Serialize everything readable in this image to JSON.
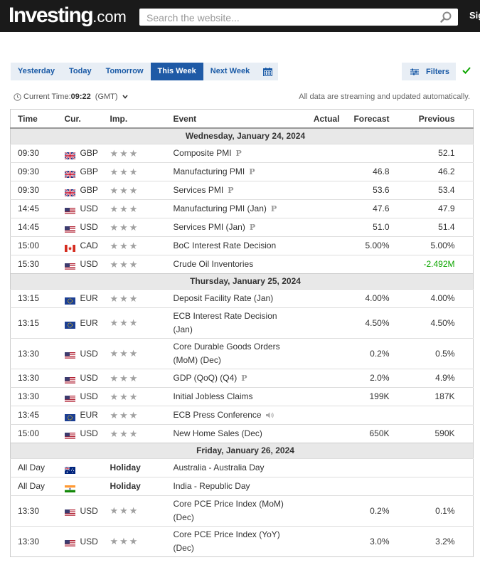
{
  "header": {
    "logo_main": "Investing",
    "logo_suffix": ".com",
    "search_placeholder": "Search the website...",
    "signin_label": "Sig"
  },
  "tabs": [
    {
      "label": "Yesterday"
    },
    {
      "label": "Today"
    },
    {
      "label": "Tomorrow"
    },
    {
      "label": "This Week",
      "active": true
    },
    {
      "label": "Next Week"
    }
  ],
  "filters_label": "Filters",
  "time_bar": {
    "label": "Current Time:",
    "value": "09:22",
    "timezone": "(GMT)"
  },
  "streaming_note": "All data are streaming and updated automatically.",
  "columns": {
    "time": "Time",
    "cur": "Cur.",
    "imp": "Imp.",
    "event": "Event",
    "actual": "Actual",
    "forecast": "Forecast",
    "previous": "Previous"
  },
  "colors": {
    "accent": "#1f5aa6",
    "positive": "#0ea600",
    "star": "#a0a0a0"
  },
  "days": [
    {
      "label": "Wednesday, January 24, 2024",
      "rows": [
        {
          "time": "09:30",
          "cur": "GBP",
          "flag": "gb",
          "imp": "★★★",
          "event": "Composite PMI",
          "pre": true,
          "actual": "",
          "forecast": "",
          "previous": "52.1"
        },
        {
          "time": "09:30",
          "cur": "GBP",
          "flag": "gb",
          "imp": "★★★",
          "event": "Manufacturing PMI",
          "pre": true,
          "actual": "",
          "forecast": "46.8",
          "previous": "46.2"
        },
        {
          "time": "09:30",
          "cur": "GBP",
          "flag": "gb",
          "imp": "★★★",
          "event": "Services PMI",
          "pre": true,
          "actual": "",
          "forecast": "53.6",
          "previous": "53.4"
        },
        {
          "time": "14:45",
          "cur": "USD",
          "flag": "us",
          "imp": "★★★",
          "event": "Manufacturing PMI (Jan)",
          "pre": true,
          "actual": "",
          "forecast": "47.6",
          "previous": "47.9"
        },
        {
          "time": "14:45",
          "cur": "USD",
          "flag": "us",
          "imp": "★★★",
          "event": "Services PMI (Jan)",
          "pre": true,
          "actual": "",
          "forecast": "51.0",
          "previous": "51.4"
        },
        {
          "time": "15:00",
          "cur": "CAD",
          "flag": "ca",
          "imp": "★★★",
          "event": "BoC Interest Rate Decision",
          "actual": "",
          "forecast": "5.00%",
          "previous": "5.00%"
        },
        {
          "time": "15:30",
          "cur": "USD",
          "flag": "us",
          "imp": "★★★",
          "event": "Crude Oil Inventories",
          "actual": "",
          "forecast": "",
          "previous": "-2.492M",
          "previous_positive": true
        }
      ]
    },
    {
      "label": "Thursday, January 25, 2024",
      "rows": [
        {
          "time": "13:15",
          "cur": "EUR",
          "flag": "eu",
          "imp": "★★★",
          "event": "Deposit Facility Rate (Jan)",
          "actual": "",
          "forecast": "4.00%",
          "previous": "4.00%"
        },
        {
          "time": "13:15",
          "cur": "EUR",
          "flag": "eu",
          "imp": "★★★",
          "event": "ECB Interest Rate Decision (Jan)",
          "tall": true,
          "actual": "",
          "forecast": "4.50%",
          "previous": "4.50%"
        },
        {
          "time": "13:30",
          "cur": "USD",
          "flag": "us",
          "imp": "★★★",
          "event": "Core Durable Goods Orders (MoM) (Dec)",
          "tall": true,
          "actual": "",
          "forecast": "0.2%",
          "previous": "0.5%"
        },
        {
          "time": "13:30",
          "cur": "USD",
          "flag": "us",
          "imp": "★★★",
          "event": "GDP (QoQ) (Q4)",
          "pre": true,
          "actual": "",
          "forecast": "2.0%",
          "previous": "4.9%"
        },
        {
          "time": "13:30",
          "cur": "USD",
          "flag": "us",
          "imp": "★★★",
          "event": "Initial Jobless Claims",
          "actual": "",
          "forecast": "199K",
          "previous": "187K"
        },
        {
          "time": "13:45",
          "cur": "EUR",
          "flag": "eu",
          "imp": "★★★",
          "event": "ECB Press Conference",
          "speech": true,
          "actual": "",
          "forecast": "",
          "previous": ""
        },
        {
          "time": "15:00",
          "cur": "USD",
          "flag": "us",
          "imp": "★★★",
          "event": "New Home Sales (Dec)",
          "actual": "",
          "forecast": "650K",
          "previous": "590K"
        }
      ]
    },
    {
      "label": "Friday, January 26, 2024",
      "rows": [
        {
          "time": "All Day",
          "cur": "",
          "flag": "au",
          "imp": "Holiday",
          "holiday": true,
          "event": "Australia - Australia Day",
          "actual": "",
          "forecast": "",
          "previous": ""
        },
        {
          "time": "All Day",
          "cur": "",
          "flag": "in",
          "imp": "Holiday",
          "holiday": true,
          "event": "India - Republic Day",
          "actual": "",
          "forecast": "",
          "previous": ""
        },
        {
          "time": "13:30",
          "cur": "USD",
          "flag": "us",
          "imp": "★★★",
          "event": "Core PCE Price Index (MoM) (Dec)",
          "tall": true,
          "actual": "",
          "forecast": "0.2%",
          "previous": "0.1%"
        },
        {
          "time": "13:30",
          "cur": "USD",
          "flag": "us",
          "imp": "★★★",
          "event": "Core PCE Price Index (YoY) (Dec)",
          "tall": true,
          "actual": "",
          "forecast": "3.0%",
          "previous": "3.2%"
        }
      ]
    }
  ]
}
